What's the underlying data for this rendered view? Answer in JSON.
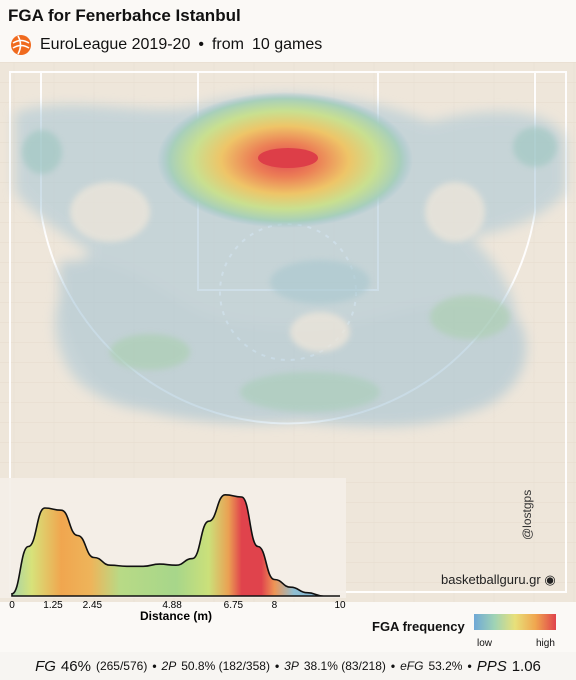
{
  "title": "FGA for Fenerbahce Istanbul",
  "subtitle": {
    "league": "EuroLeague 2019-20",
    "separator": "•",
    "from": "from",
    "games": "10 games"
  },
  "watermark": "basketballguru.gr",
  "credit": "@lostgps",
  "legend": {
    "title": "FGA frequency",
    "low": "low",
    "high": "high",
    "colors": [
      "#6fa8d6",
      "#9fd3b5",
      "#e8e07a",
      "#f0a64f",
      "#e0434c"
    ]
  },
  "stats": {
    "fg_label": "FG",
    "fg_pct": "46%",
    "fg_counts": "(265/576)",
    "p2_label": "2P",
    "p2": "50.8% (182/358)",
    "p3_label": "3P",
    "p3": "38.1% (83/218)",
    "efg_label": "eFG",
    "efg": "53.2%",
    "pps_label": "PPS",
    "pps": "1.06",
    "bullet": "•"
  },
  "colors": {
    "court_wood": "#eee5d8",
    "court_lines": "#ffffff",
    "kde_blue": "#8fb6cf",
    "hot": "#e0434c"
  },
  "chart_data": [
    {
      "type": "heatmap",
      "title": "FGA for Fenerbahce Istanbul",
      "description_units": "relative shot density on half court",
      "hotspots": [
        {
          "zone": "paint / restricted area",
          "level": 1.0
        },
        {
          "zone": "mid-range around paint",
          "level": 0.35
        },
        {
          "zone": "left corner three",
          "level": 0.3
        },
        {
          "zone": "right corner three",
          "level": 0.3
        },
        {
          "zone": "left wing three",
          "level": 0.3
        },
        {
          "zone": "right wing three",
          "level": 0.35
        },
        {
          "zone": "top of key three",
          "level": 0.3
        }
      ]
    },
    {
      "type": "area",
      "xlabel": "Distance (m)",
      "ylabel": "",
      "xlim": [
        0,
        10
      ],
      "xticks": [
        "0",
        "1.25",
        "2.45",
        "4.88",
        "6.75",
        "8",
        "10"
      ],
      "xtick_values": [
        0,
        1.25,
        2.45,
        4.88,
        6.75,
        8,
        10
      ],
      "x": [
        0,
        0.5,
        1.0,
        1.5,
        2.0,
        2.5,
        3.0,
        3.5,
        4.0,
        4.5,
        5.0,
        5.5,
        6.0,
        6.5,
        7.0,
        7.5,
        8.0,
        8.5,
        9.0,
        9.5
      ],
      "y": [
        0.02,
        0.45,
        0.8,
        0.78,
        0.55,
        0.35,
        0.28,
        0.27,
        0.27,
        0.29,
        0.28,
        0.34,
        0.68,
        0.92,
        0.9,
        0.45,
        0.15,
        0.08,
        0.03,
        0.0
      ]
    }
  ]
}
